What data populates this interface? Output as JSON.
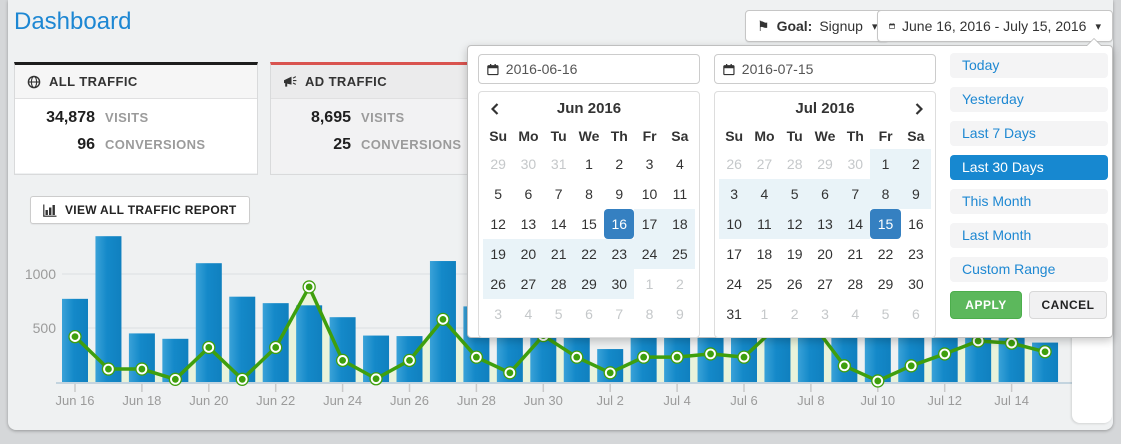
{
  "page": {
    "title": "Dashboard"
  },
  "header": {
    "goal_label": "Goal:",
    "goal_value": "Signup",
    "date_range": "June 16, 2016 - July 15, 2016"
  },
  "icons": {
    "flag": "⚑",
    "caret_down": "▾"
  },
  "stat_cards": [
    {
      "title": "ALL TRAFFIC",
      "icon": "globe-icon",
      "visits_value": "34,878",
      "visits_label": "VISITS",
      "conversions_value": "96",
      "conversions_label": "CONVERSIONS"
    },
    {
      "title": "AD TRAFFIC",
      "icon": "megaphone-icon",
      "visits_value": "8,695",
      "visits_label": "VISITS",
      "conversions_value": "25",
      "conversions_label": "CONVERSIONS"
    }
  ],
  "toolbar": {
    "view_report_label": "VIEW ALL TRAFFIC REPORT"
  },
  "daterange_popup": {
    "start_input": "2016-06-16",
    "end_input": "2016-07-15",
    "apply_label": "APPLY",
    "cancel_label": "CANCEL",
    "presets": [
      {
        "label": "Today",
        "selected": false
      },
      {
        "label": "Yesterday",
        "selected": false
      },
      {
        "label": "Last 7 Days",
        "selected": false
      },
      {
        "label": "Last 30 Days",
        "selected": true
      },
      {
        "label": "This Month",
        "selected": false
      },
      {
        "label": "Last Month",
        "selected": false
      },
      {
        "label": "Custom Range",
        "selected": false
      }
    ],
    "months": [
      {
        "title": "Jun 2016",
        "weekdays": [
          "Su",
          "Mo",
          "Tu",
          "We",
          "Th",
          "Fr",
          "Sa"
        ],
        "weeks": [
          [
            [
              29,
              "mut"
            ],
            [
              30,
              "mut"
            ],
            [
              31,
              "mut"
            ],
            [
              1,
              ""
            ],
            [
              2,
              ""
            ],
            [
              3,
              ""
            ],
            [
              4,
              ""
            ]
          ],
          [
            [
              5,
              ""
            ],
            [
              6,
              ""
            ],
            [
              7,
              ""
            ],
            [
              8,
              ""
            ],
            [
              9,
              ""
            ],
            [
              10,
              ""
            ],
            [
              11,
              ""
            ]
          ],
          [
            [
              12,
              ""
            ],
            [
              13,
              ""
            ],
            [
              14,
              ""
            ],
            [
              15,
              ""
            ],
            [
              16,
              "sel"
            ],
            [
              17,
              "inr"
            ],
            [
              18,
              "inr"
            ]
          ],
          [
            [
              19,
              "inr"
            ],
            [
              20,
              "inr"
            ],
            [
              21,
              "inr"
            ],
            [
              22,
              "inr"
            ],
            [
              23,
              "inr"
            ],
            [
              24,
              "inr"
            ],
            [
              25,
              "inr"
            ]
          ],
          [
            [
              26,
              "inr"
            ],
            [
              27,
              "inr"
            ],
            [
              28,
              "inr"
            ],
            [
              29,
              "inr"
            ],
            [
              30,
              "inr"
            ],
            [
              1,
              "mut"
            ],
            [
              2,
              "mut"
            ]
          ],
          [
            [
              3,
              "mut"
            ],
            [
              4,
              "mut"
            ],
            [
              5,
              "mut"
            ],
            [
              6,
              "mut"
            ],
            [
              7,
              "mut"
            ],
            [
              8,
              "mut"
            ],
            [
              9,
              "mut"
            ]
          ]
        ]
      },
      {
        "title": "Jul 2016",
        "weekdays": [
          "Su",
          "Mo",
          "Tu",
          "We",
          "Th",
          "Fr",
          "Sa"
        ],
        "weeks": [
          [
            [
              26,
              "mut"
            ],
            [
              27,
              "mut"
            ],
            [
              28,
              "mut"
            ],
            [
              29,
              "mut"
            ],
            [
              30,
              "mut"
            ],
            [
              1,
              "inr"
            ],
            [
              2,
              "inr"
            ]
          ],
          [
            [
              3,
              "inr"
            ],
            [
              4,
              "inr"
            ],
            [
              5,
              "inr"
            ],
            [
              6,
              "inr"
            ],
            [
              7,
              "inr"
            ],
            [
              8,
              "inr"
            ],
            [
              9,
              "inr"
            ]
          ],
          [
            [
              10,
              "inr"
            ],
            [
              11,
              "inr"
            ],
            [
              12,
              "inr"
            ],
            [
              13,
              "inr"
            ],
            [
              14,
              "inr"
            ],
            [
              15,
              "sel"
            ],
            [
              16,
              ""
            ]
          ],
          [
            [
              17,
              ""
            ],
            [
              18,
              ""
            ],
            [
              19,
              ""
            ],
            [
              20,
              ""
            ],
            [
              21,
              ""
            ],
            [
              22,
              ""
            ],
            [
              23,
              ""
            ]
          ],
          [
            [
              24,
              ""
            ],
            [
              25,
              ""
            ],
            [
              26,
              ""
            ],
            [
              27,
              ""
            ],
            [
              28,
              ""
            ],
            [
              29,
              ""
            ],
            [
              30,
              ""
            ]
          ],
          [
            [
              31,
              ""
            ],
            [
              1,
              "mut"
            ],
            [
              2,
              "mut"
            ],
            [
              3,
              "mut"
            ],
            [
              4,
              "mut"
            ],
            [
              5,
              "mut"
            ],
            [
              6,
              "mut"
            ]
          ]
        ]
      }
    ]
  },
  "chart_data": {
    "type": "bar",
    "title": "",
    "xlabel": "",
    "ylabel": "",
    "ylim": [
      0,
      1400
    ],
    "yticks": [
      500,
      1000
    ],
    "grid": true,
    "legend": "none",
    "categories": [
      "Jun 16",
      "Jun 17",
      "Jun 18",
      "Jun 19",
      "Jun 20",
      "Jun 21",
      "Jun 22",
      "Jun 23",
      "Jun 24",
      "Jun 25",
      "Jun 26",
      "Jun 27",
      "Jun 28",
      "Jun 29",
      "Jun 30",
      "Jul 1",
      "Jul 2",
      "Jul 3",
      "Jul 4",
      "Jul 5",
      "Jul 6",
      "Jul 7",
      "Jul 8",
      "Jul 9",
      "Jul 10",
      "Jul 11",
      "Jul 12",
      "Jul 13",
      "Jul 14",
      "Jul 15"
    ],
    "xtick_every": 2,
    "series": [
      {
        "name": "bars",
        "kind": "bar",
        "values": [
          770,
          1350,
          450,
          400,
          1100,
          790,
          730,
          710,
          600,
          430,
          425,
          1120,
          700,
          850,
          600,
          750,
          305,
          800,
          700,
          900,
          650,
          700,
          800,
          600,
          750,
          700,
          650,
          700,
          600,
          365
        ]
      },
      {
        "name": "line",
        "kind": "line",
        "values": [
          420,
          120,
          120,
          25,
          320,
          25,
          320,
          880,
          200,
          30,
          200,
          580,
          230,
          85,
          430,
          230,
          85,
          230,
          230,
          260,
          230,
          520,
          560,
          150,
          10,
          150,
          260,
          380,
          360,
          280
        ]
      }
    ],
    "colors": {
      "bar": "#1489c9",
      "bar_light": "#3aa2d8",
      "line": "#3f9f0d",
      "area": "#e9f3db",
      "axis": "#c3d4df",
      "grid": "#e2e5e7",
      "tick_label": "#9b9b9b"
    }
  },
  "ui_colors": {
    "accent_blue": "#1e88d2",
    "selected_day_blue": "#3580c1",
    "range_bg": "#e9f3f8",
    "apply_green": "#5cb85c",
    "ad_red": "#d9534f",
    "all_black": "#1d1d1d"
  }
}
